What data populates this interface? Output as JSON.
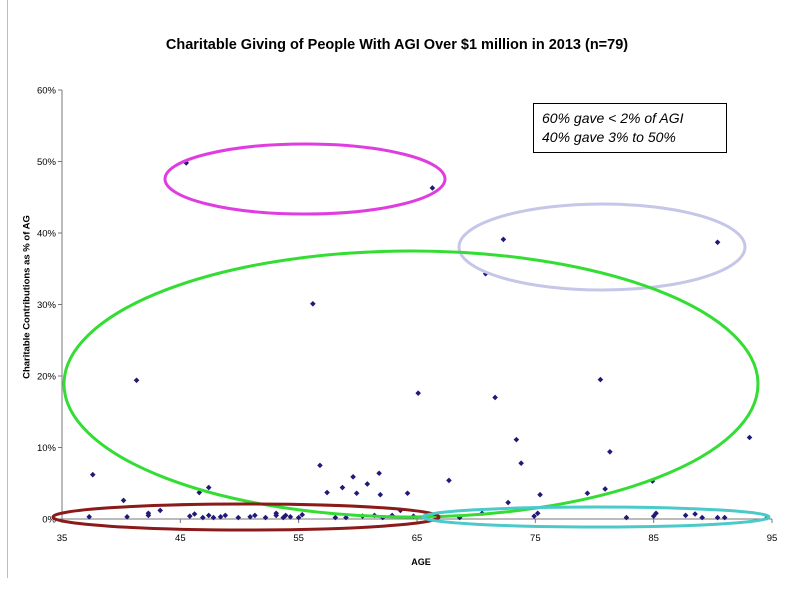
{
  "chart_data": {
    "type": "scatter",
    "title": "Charitable Giving of People With AGI Over $1 million in  2013 (n=79)",
    "xlabel": "AGE",
    "ylabel": "Charitable Contributions as % of AG",
    "xlim": [
      35,
      95
    ],
    "ylim": [
      0,
      60
    ],
    "x_ticks": [
      "35",
      "45",
      "55",
      "65",
      "75",
      "85",
      "95"
    ],
    "y_ticks": [
      "0%",
      "10%",
      "20%",
      "30%",
      "40%",
      "50%",
      "60%"
    ],
    "grid": false,
    "legend": "none",
    "marker_color": "#1f1a78",
    "series": [
      {
        "points": [
          [
            37.3,
            0.3
          ],
          [
            37.6,
            6.2
          ],
          [
            40.5,
            0.3
          ],
          [
            40.2,
            2.6
          ],
          [
            41.3,
            19.4
          ],
          [
            42.3,
            0.5
          ],
          [
            42.3,
            0.8
          ],
          [
            43.3,
            1.2
          ],
          [
            45.5,
            49.8
          ],
          [
            45.8,
            0.4
          ],
          [
            46.2,
            0.7
          ],
          [
            46.6,
            3.7
          ],
          [
            46.9,
            0.2
          ],
          [
            47.4,
            4.4
          ],
          [
            47.4,
            0.5
          ],
          [
            47.8,
            0.2
          ],
          [
            48.4,
            0.3
          ],
          [
            48.8,
            0.5
          ],
          [
            49.9,
            0.2
          ],
          [
            50.9,
            0.3
          ],
          [
            51.3,
            0.5
          ],
          [
            52.2,
            0.2
          ],
          [
            53.1,
            0.5
          ],
          [
            53.1,
            0.8
          ],
          [
            53.7,
            0.2
          ],
          [
            53.9,
            0.5
          ],
          [
            54.3,
            0.3
          ],
          [
            55.0,
            0.2
          ],
          [
            55.3,
            0.6
          ],
          [
            56.2,
            30.1
          ],
          [
            56.8,
            7.5
          ],
          [
            57.4,
            3.7
          ],
          [
            58.1,
            0.2
          ],
          [
            58.7,
            4.4
          ],
          [
            59.0,
            0.2
          ],
          [
            59.6,
            5.9
          ],
          [
            59.9,
            3.6
          ],
          [
            60.4,
            0.4
          ],
          [
            60.8,
            4.9
          ],
          [
            61.4,
            0.5
          ],
          [
            61.8,
            6.4
          ],
          [
            61.9,
            3.4
          ],
          [
            62.1,
            0.2
          ],
          [
            62.9,
            0.5
          ],
          [
            63.6,
            1.2
          ],
          [
            64.2,
            3.6
          ],
          [
            64.7,
            0.4
          ],
          [
            65.1,
            17.6
          ],
          [
            65.8,
            0.4
          ],
          [
            66.3,
            46.3
          ],
          [
            66.6,
            0.2
          ],
          [
            67.7,
            5.4
          ],
          [
            68.6,
            0.2
          ],
          [
            70.5,
            0.8
          ],
          [
            70.8,
            34.3
          ],
          [
            71.6,
            17.0
          ],
          [
            72.3,
            39.1
          ],
          [
            72.7,
            2.3
          ],
          [
            73.4,
            11.1
          ],
          [
            73.8,
            7.8
          ],
          [
            74.9,
            0.4
          ],
          [
            75.2,
            0.8
          ],
          [
            75.4,
            3.4
          ],
          [
            79.4,
            3.6
          ],
          [
            80.5,
            19.5
          ],
          [
            80.9,
            4.2
          ],
          [
            81.3,
            9.4
          ],
          [
            82.7,
            0.2
          ],
          [
            84.9,
            5.3
          ],
          [
            85.0,
            0.4
          ],
          [
            85.2,
            0.8
          ],
          [
            87.7,
            0.5
          ],
          [
            88.5,
            0.7
          ],
          [
            89.1,
            0.2
          ],
          [
            90.4,
            38.7
          ],
          [
            90.4,
            0.2
          ],
          [
            91.0,
            0.2
          ],
          [
            93.1,
            11.4
          ],
          [
            94.6,
            0.2
          ]
        ]
      }
    ],
    "annotations": {
      "note_line1": "60% gave < 2% of AGI",
      "note_line2": "40% gave 3% to 50%"
    },
    "ellipse_colors": {
      "top_magenta": "#e03de0",
      "upper_right_lavender": "#c6c6e8",
      "middle_green": "#33dd33",
      "bottom_left_maroon": "#8b1a1a",
      "bottom_right_teal": "#4cc9c9"
    }
  }
}
